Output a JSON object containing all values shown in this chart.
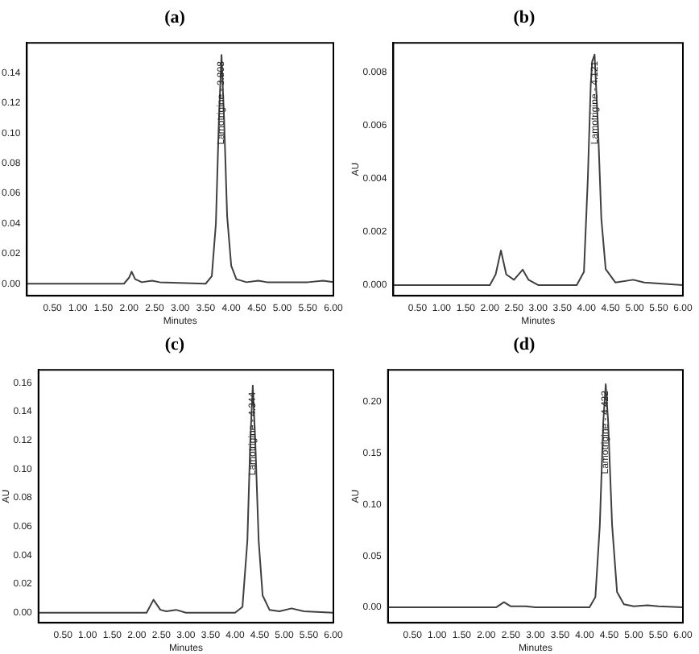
{
  "chart_data": [
    {
      "type": "line",
      "title": "(a)",
      "xlabel": "Minutes",
      "marker": "none",
      "grid": false,
      "x": [
        0,
        1,
        1.9,
        2.0,
        2.05,
        2.12,
        2.25,
        2.45,
        2.6,
        3.5,
        3.62,
        3.7,
        3.76,
        3.81,
        3.86,
        3.92,
        4.0,
        4.1,
        4.3,
        4.53,
        4.7,
        5.5,
        5.8,
        6
      ],
      "series": [
        {
          "color": "#404040",
          "values": [
            0,
            0,
            0,
            0.004,
            0.008,
            0.003,
            0.001,
            0.002,
            0.001,
            0,
            0.005,
            0.04,
            0.11,
            0.152,
            0.11,
            0.045,
            0.012,
            0.003,
            0.001,
            0.002,
            0.001,
            0.001,
            0.002,
            0.001
          ]
        }
      ],
      "xlim": [
        0,
        6
      ],
      "ylim": [
        -0.008,
        0.16
      ],
      "xticks": [
        {
          "value": 0.5,
          "label": "0.50"
        },
        {
          "value": 1,
          "label": "1.00"
        },
        {
          "value": 1.5,
          "label": "1.50"
        },
        {
          "value": 2,
          "label": "2.00"
        },
        {
          "value": 2.5,
          "label": "2.50"
        },
        {
          "value": 3,
          "label": "3.00"
        },
        {
          "value": 3.5,
          "label": "3.50"
        },
        {
          "value": 4,
          "label": "4.00"
        },
        {
          "value": 4.5,
          "label": "4.50"
        },
        {
          "value": 5,
          "label": "5.00"
        },
        {
          "value": 5.5,
          "label": "5.50"
        },
        {
          "value": 6,
          "label": "6.00"
        }
      ],
      "yticks": [
        {
          "value": 0,
          "label": "0.00"
        },
        {
          "value": 0.02,
          "label": "0.02"
        },
        {
          "value": 0.04,
          "label": "0.04"
        },
        {
          "value": 0.06,
          "label": "0.06"
        },
        {
          "value": 0.08,
          "label": "0.08"
        },
        {
          "value": 0.1,
          "label": "0.10"
        },
        {
          "value": 0.12,
          "label": "0.12"
        },
        {
          "value": 0.14,
          "label": "0.14"
        }
      ],
      "annotations": [
        {
          "text": "Lamotrigine - 3.808",
          "x": 3.81,
          "y": 0.152
        }
      ]
    },
    {
      "type": "line",
      "title": "(b)",
      "xlabel": "Minutes",
      "ylabel": "AU",
      "marker": "none",
      "grid": false,
      "x": [
        0,
        1,
        2.0,
        2.12,
        2.23,
        2.34,
        2.5,
        2.68,
        2.8,
        3.0,
        3.8,
        3.95,
        4.03,
        4.09,
        4.12,
        4.17,
        4.24,
        4.31,
        4.4,
        4.6,
        4.97,
        5.2,
        6
      ],
      "series": [
        {
          "color": "#404040",
          "values": [
            0,
            0,
            0,
            0.0004,
            0.0013,
            0.0004,
            0.0002,
            0.00058,
            0.0002,
            0,
            0,
            0.0005,
            0.004,
            0.0075,
            0.0084,
            0.00866,
            0.006,
            0.0025,
            0.0006,
            0.0001,
            0.0002,
            0.0001,
            0
          ]
        }
      ],
      "xlim": [
        0,
        6
      ],
      "ylim": [
        -0.0004,
        0.0091
      ],
      "xticks": [
        {
          "value": 0.5,
          "label": "0.50"
        },
        {
          "value": 1,
          "label": "1.00"
        },
        {
          "value": 1.5,
          "label": "1.50"
        },
        {
          "value": 2,
          "label": "2.00"
        },
        {
          "value": 2.5,
          "label": "2.50"
        },
        {
          "value": 3,
          "label": "3.00"
        },
        {
          "value": 3.5,
          "label": "3.50"
        },
        {
          "value": 4,
          "label": "4.00"
        },
        {
          "value": 4.5,
          "label": "4.50"
        },
        {
          "value": 5,
          "label": "5.00"
        },
        {
          "value": 5.5,
          "label": "5.50"
        },
        {
          "value": 6,
          "label": "6.00"
        }
      ],
      "yticks": [
        {
          "value": 0,
          "label": "0.000"
        },
        {
          "value": 0.002,
          "label": "0.002"
        },
        {
          "value": 0.004,
          "label": "0.004"
        },
        {
          "value": 0.006,
          "label": "0.006"
        },
        {
          "value": 0.008,
          "label": "0.008"
        }
      ],
      "annotations": [
        {
          "text": "Lamotrigine - 4.121",
          "x": 4.17,
          "y": 0.00866
        }
      ]
    },
    {
      "type": "line",
      "title": "(c)",
      "xlabel": "Minutes",
      "ylabel": "AU",
      "marker": "none",
      "grid": false,
      "x": [
        0,
        1,
        2.2,
        2.34,
        2.48,
        2.6,
        2.8,
        3.0,
        4.0,
        4.15,
        4.25,
        4.31,
        4.36,
        4.41,
        4.48,
        4.56,
        4.7,
        4.9,
        5.15,
        5.4,
        6
      ],
      "series": [
        {
          "color": "#404040",
          "values": [
            0,
            0,
            0,
            0.009,
            0.002,
            0.001,
            0.002,
            0,
            0,
            0.004,
            0.05,
            0.12,
            0.158,
            0.12,
            0.05,
            0.012,
            0.002,
            0.001,
            0.003,
            0.001,
            0
          ]
        }
      ],
      "xlim": [
        0,
        6
      ],
      "ylim": [
        -0.007,
        0.169
      ],
      "xticks": [
        {
          "value": 0.5,
          "label": "0.50"
        },
        {
          "value": 1,
          "label": "1.00"
        },
        {
          "value": 1.5,
          "label": "1.50"
        },
        {
          "value": 2,
          "label": "2.00"
        },
        {
          "value": 2.5,
          "label": "2.50"
        },
        {
          "value": 3,
          "label": "3.00"
        },
        {
          "value": 3.5,
          "label": "3.50"
        },
        {
          "value": 4,
          "label": "4.00"
        },
        {
          "value": 4.5,
          "label": "4.50"
        },
        {
          "value": 5,
          "label": "5.00"
        },
        {
          "value": 5.5,
          "label": "5.50"
        },
        {
          "value": 6,
          "label": "6.00"
        }
      ],
      "yticks": [
        {
          "value": 0,
          "label": "0.00"
        },
        {
          "value": 0.02,
          "label": "0.02"
        },
        {
          "value": 0.04,
          "label": "0.04"
        },
        {
          "value": 0.06,
          "label": "0.06"
        },
        {
          "value": 0.08,
          "label": "0.08"
        },
        {
          "value": 0.1,
          "label": "0.10"
        },
        {
          "value": 0.12,
          "label": "0.12"
        },
        {
          "value": 0.14,
          "label": "0.14"
        },
        {
          "value": 0.16,
          "label": "0.16"
        }
      ],
      "annotations": [
        {
          "text": "Lamotrigine - 4.344",
          "x": 4.36,
          "y": 0.158
        }
      ]
    },
    {
      "type": "line",
      "title": "(d)",
      "xlabel": "Minutes",
      "ylabel": "AU",
      "marker": "none",
      "grid": false,
      "x": [
        0,
        1,
        2.2,
        2.36,
        2.5,
        2.8,
        3.0,
        4.1,
        4.22,
        4.31,
        4.38,
        4.43,
        4.48,
        4.56,
        4.66,
        4.8,
        5.0,
        5.28,
        5.5,
        6
      ],
      "series": [
        {
          "color": "#404040",
          "values": [
            0,
            0,
            0,
            0.005,
            0.001,
            0.001,
            0,
            0,
            0.01,
            0.08,
            0.18,
            0.217,
            0.18,
            0.08,
            0.015,
            0.003,
            0.001,
            0.002,
            0.001,
            0
          ]
        }
      ],
      "xlim": [
        0,
        6
      ],
      "ylim": [
        -0.015,
        0.231
      ],
      "xticks": [
        {
          "value": 0.5,
          "label": "0.50"
        },
        {
          "value": 1,
          "label": "1.00"
        },
        {
          "value": 1.5,
          "label": "1.50"
        },
        {
          "value": 2,
          "label": "2.00"
        },
        {
          "value": 2.5,
          "label": "2.50"
        },
        {
          "value": 3,
          "label": "3.00"
        },
        {
          "value": 3.5,
          "label": "3.50"
        },
        {
          "value": 4,
          "label": "4.00"
        },
        {
          "value": 4.5,
          "label": "4.50"
        },
        {
          "value": 5,
          "label": "5.00"
        },
        {
          "value": 5.5,
          "label": "5.50"
        },
        {
          "value": 6,
          "label": "6.00"
        }
      ],
      "yticks": [
        {
          "value": 0,
          "label": "0.00"
        },
        {
          "value": 0.05,
          "label": "0.05"
        },
        {
          "value": 0.1,
          "label": "0.10"
        },
        {
          "value": 0.15,
          "label": "0.15"
        },
        {
          "value": 0.2,
          "label": "0.20"
        }
      ],
      "annotations": [
        {
          "text": "Lamotrigine - 4.422",
          "x": 4.43,
          "y": 0.217
        }
      ]
    }
  ]
}
